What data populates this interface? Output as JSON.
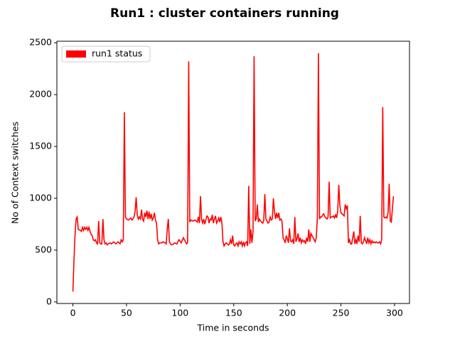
{
  "chart_data": {
    "type": "line",
    "title": "Run1 : cluster containers running",
    "xlabel": "Time  in seconds",
    "ylabel": "No of Context switches",
    "x": [
      0,
      1,
      2,
      3,
      4,
      5,
      7,
      8,
      9,
      10,
      11,
      12,
      13,
      14,
      15,
      16,
      17,
      18,
      19,
      20,
      21,
      22,
      23,
      24,
      25,
      26,
      27,
      28,
      29,
      30,
      31,
      32,
      33,
      35,
      36,
      38,
      40,
      42,
      44,
      45,
      46,
      47,
      48,
      49,
      50,
      52,
      54,
      55,
      56,
      57,
      58,
      59,
      60,
      61,
      62,
      63,
      64,
      65,
      66,
      67,
      68,
      69,
      70,
      71,
      72,
      73,
      74,
      75,
      76,
      77,
      78,
      79,
      80,
      81,
      83,
      84,
      86,
      87,
      88,
      89,
      90,
      91,
      92,
      94,
      95,
      97,
      99,
      101,
      103,
      105,
      106,
      107,
      108,
      109,
      110,
      112,
      114,
      116,
      117,
      118,
      119,
      120,
      121,
      122,
      123,
      124,
      125,
      126,
      127,
      128,
      129,
      130,
      131,
      132,
      133,
      134,
      135,
      136,
      137,
      138,
      139,
      140,
      141,
      142,
      143,
      145,
      146,
      147,
      148,
      149,
      150,
      151,
      152,
      153,
      154,
      155,
      156,
      157,
      158,
      159,
      160,
      161,
      162,
      163,
      164,
      165,
      166,
      167,
      168,
      169,
      170,
      171,
      172,
      173,
      174,
      175,
      176,
      177,
      178,
      179,
      180,
      181,
      182,
      183,
      184,
      185,
      186,
      187,
      188,
      189,
      190,
      191,
      192,
      193,
      194,
      195,
      196,
      197,
      198,
      199,
      200,
      201,
      202,
      203,
      204,
      205,
      206,
      207,
      208,
      209,
      210,
      211,
      212,
      213,
      214,
      215,
      216,
      217,
      218,
      219,
      220,
      221,
      222,
      223,
      224,
      225,
      226,
      227,
      228,
      229,
      230,
      231,
      232,
      233,
      234,
      235,
      236,
      237,
      238,
      239,
      240,
      241,
      242,
      243,
      244,
      245,
      246,
      247,
      248,
      249,
      250,
      251,
      252,
      253,
      254,
      255,
      256,
      257,
      258,
      259,
      260,
      261,
      262,
      263,
      264,
      265,
      266,
      267,
      268,
      269,
      270,
      271,
      272,
      273,
      274,
      275,
      276,
      277,
      278,
      279,
      280,
      281,
      282,
      283,
      284,
      285,
      286,
      287,
      288,
      289,
      290,
      291,
      292,
      293,
      294,
      295,
      296,
      297,
      298,
      299
    ],
    "series": [
      {
        "name": "run1 status",
        "color": "#ff0000",
        "values": [
          100,
          400,
          650,
          800,
          820,
          700,
          690,
          680,
          720,
          690,
          720,
          700,
          720,
          690,
          720,
          680,
          650,
          640,
          600,
          590,
          600,
          570,
          560,
          780,
          570,
          560,
          560,
          800,
          600,
          560,
          570,
          550,
          560,
          570,
          560,
          580,
          560,
          580,
          560,
          600,
          580,
          600,
          1830,
          820,
          800,
          790,
          810,
          790,
          800,
          820,
          870,
          1010,
          840,
          800,
          820,
          800,
          890,
          800,
          780,
          860,
          820,
          880,
          800,
          870,
          800,
          850,
          790,
          810,
          860,
          790,
          760,
          600,
          560,
          570,
          570,
          580,
          570,
          560,
          700,
          800,
          580,
          560,
          550,
          560,
          570,
          560,
          600,
          570,
          620,
          580,
          560,
          570,
          2320,
          770,
          790,
          780,
          790,
          770,
          820,
          760,
          1020,
          800,
          760,
          800,
          750,
          790,
          830,
          820,
          760,
          800,
          790,
          840,
          760,
          800,
          830,
          760,
          780,
          810,
          770,
          820,
          760,
          580,
          540,
          560,
          570,
          550,
          560,
          600,
          560,
          640,
          550,
          540,
          560,
          570,
          540,
          580,
          560,
          580,
          540,
          580,
          540,
          570,
          580,
          540,
          1120,
          560,
          700,
          570,
          680,
          2370,
          780,
          800,
          940,
          770,
          800,
          780,
          770,
          760,
          780,
          1040,
          800,
          780,
          760,
          770,
          820,
          790,
          800,
          1000,
          870,
          800,
          860,
          810,
          860,
          790,
          800,
          780,
          620,
          600,
          570,
          640,
          610,
          570,
          710,
          590,
          580,
          600,
          560,
          820,
          580,
          610,
          660,
          580,
          620,
          570,
          600,
          580,
          590,
          560,
          620,
          580,
          700,
          580,
          660,
          640,
          620,
          600,
          580,
          620,
          810,
          2400,
          800,
          820,
          820,
          840,
          850,
          820,
          810,
          800,
          820,
          1160,
          810,
          820,
          820,
          830,
          810,
          840,
          810,
          880,
          1130,
          930,
          860,
          850,
          840,
          830,
          940,
          900,
          930,
          570,
          600,
          560,
          560,
          620,
          680,
          560,
          600,
          560,
          640,
          580,
          830,
          570,
          560,
          580,
          620,
          590,
          560,
          620,
          570,
          600,
          560,
          590,
          570,
          580,
          570,
          580,
          570,
          570,
          580,
          560,
          600,
          1880,
          820,
          810,
          820,
          810,
          860,
          1140,
          780,
          770,
          900,
          1020
        ]
      }
    ],
    "xlim": [
      -14.95,
      313.95
    ],
    "xticks": [
      0,
      50,
      100,
      150,
      200,
      250,
      300
    ],
    "ylim": [
      -15,
      2515
    ],
    "yticks": [
      0,
      500,
      1000,
      1500,
      2000,
      2500
    ],
    "legend": "upper left"
  }
}
